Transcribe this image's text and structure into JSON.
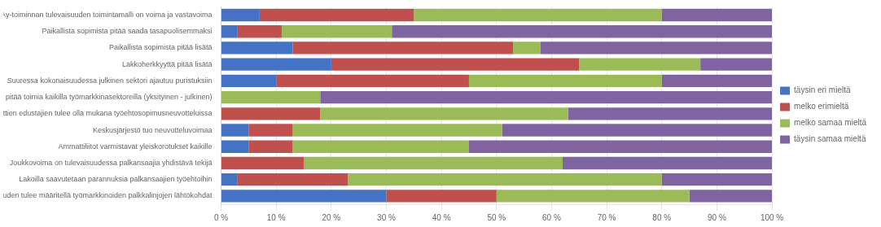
{
  "chart_data": {
    "type": "bar",
    "orientation": "horizontal",
    "stacked": true,
    "categories": [
      "Ay-toiminnan tulevaisuuden toimintamalli on voima ja vastavoima",
      "Paikallista sopimista pitää saada tasapuolisemmaksi",
      "Paikallista sopimista pitää lisätä",
      "Lakkoherkkyyttä pitää lisätä",
      "Suuressa kokonaisuudessa julkinen sektori ajautuu puristuksiin",
      "Keskusjärjestön pitää toimia kaikilla työmarkkinasektoreilla (yksityinen - julkinen)",
      "Eri ammattien edustajien tulee olla mukana työehtosopimusneuvotteluissa",
      "Keskusjärjestö tuo neuvotteluvoimaa",
      "Ammattiliitot varmistavat yleiskorotukset kaikille",
      "Joukkovoima on tulevaisuudessa palkansaajia yhdistävä tekijä",
      "Lakoilla saavutetaan parannuksia palkansaajien työehtoihin",
      "Teollisuuden tulee määritellä työmarkkinoiden palkkalinjojen lähtökohdat"
    ],
    "series": [
      {
        "name": "täysin eri mieltä",
        "color": "#4472C4",
        "values": [
          7,
          3,
          13,
          20,
          10,
          0,
          0,
          5,
          5,
          0,
          3,
          30
        ]
      },
      {
        "name": "melko erimieltä",
        "color": "#C0504D",
        "values": [
          28,
          8,
          40,
          45,
          35,
          0,
          18,
          8,
          8,
          15,
          20,
          20
        ]
      },
      {
        "name": "melko samaa mieltä",
        "color": "#9BBB59",
        "values": [
          45,
          20,
          5,
          22,
          35,
          18,
          45,
          38,
          32,
          47,
          57,
          35
        ]
      },
      {
        "name": "täysin samaa mieltä",
        "color": "#8064A2",
        "values": [
          20,
          69,
          42,
          13,
          20,
          82,
          37,
          49,
          55,
          38,
          20,
          15
        ]
      }
    ],
    "xlim": [
      0,
      100
    ],
    "xticks": [
      {
        "value": 0,
        "label": "0 %"
      },
      {
        "value": 10,
        "label": "10 %"
      },
      {
        "value": 20,
        "label": "20 %"
      },
      {
        "value": 30,
        "label": "30 %"
      },
      {
        "value": 40,
        "label": "40 %"
      },
      {
        "value": 50,
        "label": "50 %"
      },
      {
        "value": 60,
        "label": "60 %"
      },
      {
        "value": 70,
        "label": "70 %"
      },
      {
        "value": 80,
        "label": "80 %"
      },
      {
        "value": 90,
        "label": "90 %"
      },
      {
        "value": 100,
        "label": "100 %"
      }
    ],
    "grid": true,
    "legend": "right"
  }
}
